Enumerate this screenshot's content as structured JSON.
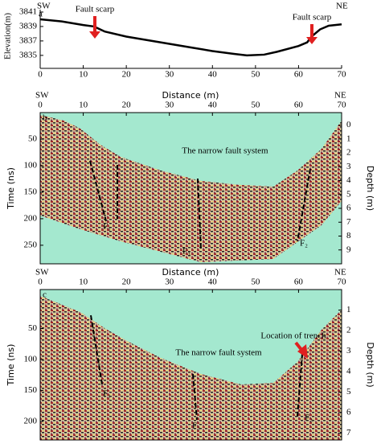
{
  "chart_data": [
    {
      "type": "line",
      "panel": "a",
      "left_label": "SW",
      "right_label": "NE",
      "ylabel": "Elevation(m)",
      "x": [
        0,
        5,
        10,
        12.5,
        15,
        20,
        25,
        30,
        35,
        40,
        45,
        48,
        52,
        55,
        60,
        62,
        63,
        65,
        67,
        70
      ],
      "values": [
        3840,
        3839.7,
        3839.2,
        3839,
        3838.3,
        3837.6,
        3837.1,
        3836.6,
        3836.1,
        3835.6,
        3835.2,
        3835,
        3835.1,
        3835.5,
        3836.3,
        3836.8,
        3837.6,
        3838.6,
        3839.1,
        3839.3
      ],
      "color": "#000000",
      "xlim": [
        0,
        70
      ],
      "xticks": [
        0,
        10,
        20,
        30,
        40,
        50,
        60,
        70
      ],
      "ylim": [
        3833.2,
        3842
      ],
      "yticks": [
        3835,
        3837,
        3839,
        3841
      ],
      "annotations": [
        "Fault scarp",
        "Fault scarp"
      ]
    },
    {
      "type": "radargram",
      "panel": "b",
      "left_label": "SW",
      "right_label": "NE",
      "xlabel": "Distance (m)",
      "ylabel": "Time (ns)",
      "y2label": "Depth (m)",
      "xlim": [
        0,
        70
      ],
      "xticks": [
        0,
        10,
        20,
        30,
        40,
        50,
        60,
        70
      ],
      "ylim": [
        0,
        285
      ],
      "yticks": [
        50,
        100,
        150,
        200,
        250
      ],
      "y2lim": [
        -0.9,
        10
      ],
      "y2ticks": [
        0,
        1,
        2,
        3,
        4,
        5,
        6,
        7,
        8,
        9
      ],
      "title": "The narrow fault system",
      "faults": [
        "F₁",
        "F₃",
        "F₂"
      ]
    },
    {
      "type": "radargram",
      "panel": "c",
      "left_label": "SW",
      "right_label": "NE",
      "xlabel": "Distance (m)",
      "ylabel": "Time (ns)",
      "y2label": "Depth (m)",
      "xlim": [
        0,
        70
      ],
      "xticks": [
        0,
        10,
        20,
        30,
        40,
        50,
        60,
        70
      ],
      "ylim": [
        -13,
        230
      ],
      "yticks": [
        50,
        100,
        150,
        200
      ],
      "y2lim": [
        0,
        7.33
      ],
      "y2ticks": [
        1,
        2,
        3,
        4,
        5,
        6,
        7
      ],
      "title": "The narrow fault system",
      "faults": [
        "F₁",
        "F₃",
        "F₂"
      ],
      "annotations": [
        "Location of trench"
      ]
    }
  ]
}
